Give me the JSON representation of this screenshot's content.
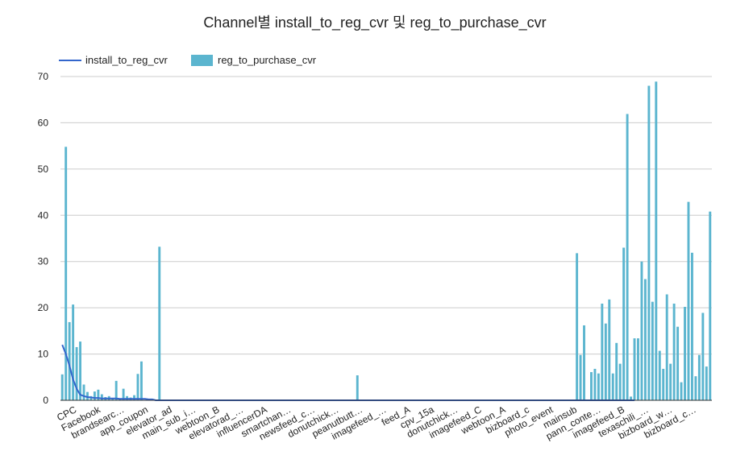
{
  "chart_data": {
    "type": "bar",
    "title": "Channel별 install_to_reg_cvr 및 reg_to_purchase_cvr",
    "xlabel": "",
    "ylabel": "",
    "ylim": [
      0,
      70
    ],
    "yticks": [
      0,
      10,
      20,
      30,
      40,
      50,
      60,
      70
    ],
    "grid": true,
    "legend_position": "top-left",
    "colors": {
      "line": "#3366CC",
      "bar": "#5BB5CF",
      "grid": "#CCCCCC",
      "axis": "#333333"
    },
    "x_tick_labels": [
      "CPC",
      "Facebook",
      "brandsearc…",
      "app_coupon",
      "elevator_ad",
      "main_sub_i…",
      "webtoon_B",
      "elevatorad_…",
      "influencerDA",
      "smartchan…",
      "newsfeed_c…",
      "donutchick…",
      "peanutbutt…",
      "imagefeed_…",
      "feed_A",
      "cpv_15a",
      "donutchick…",
      "imagefeed_C",
      "webtoon_A",
      "bizboard_c",
      "photo_event",
      "mainsub",
      "pann_conte…",
      "imagefeed_B",
      "texaschili_…",
      "bizboard_w…",
      "bizboard_c…"
    ],
    "series": [
      {
        "name": "install_to_reg_cvr",
        "type": "line",
        "values": [
          12,
          10,
          7.5,
          4.5,
          2.5,
          1.2,
          0.9,
          0.7,
          0.6,
          0.5,
          0.5,
          0.4,
          0.4,
          0.4,
          0.4,
          0.4,
          0.3,
          0.3,
          0.3,
          0.3,
          0.3,
          0.3,
          0.3,
          0.3,
          0.2,
          0.2,
          0,
          0,
          0,
          0,
          0,
          0,
          0,
          0,
          0,
          0,
          0,
          0,
          0,
          0,
          0,
          0,
          0,
          0,
          0,
          0,
          0,
          0,
          0,
          0,
          0,
          0,
          0,
          0,
          0,
          0,
          0,
          0,
          0,
          0,
          0,
          0,
          0,
          0,
          0,
          0,
          0,
          0,
          0,
          0,
          0,
          0,
          0,
          0,
          0,
          0,
          0,
          0,
          0,
          0,
          0,
          0,
          0,
          0,
          0,
          0,
          0,
          0,
          0,
          0,
          0,
          0,
          0,
          0,
          0,
          0,
          0,
          0,
          0,
          0,
          0,
          0,
          0,
          0,
          0,
          0,
          0,
          0,
          0,
          0,
          0,
          0,
          0,
          0,
          0,
          0,
          0,
          0,
          0,
          0,
          0,
          0,
          0,
          0,
          0,
          0,
          0,
          0,
          0,
          0,
          0,
          0,
          0,
          0,
          0,
          0,
          0,
          0,
          0,
          0,
          0,
          0,
          0,
          0,
          0,
          0,
          0,
          0,
          0,
          0,
          0,
          0,
          0,
          0,
          0,
          0,
          0,
          0,
          0,
          0
        ]
      },
      {
        "name": "reg_to_purchase_cvr",
        "type": "bar",
        "values": [
          5.6,
          54.8,
          16.9,
          20.7,
          11.5,
          12.7,
          3.4,
          1.8,
          0.9,
          1.9,
          2.3,
          1.3,
          0.7,
          0.9,
          0.5,
          4.2,
          0.4,
          2.5,
          0.9,
          0.6,
          1.1,
          5.7,
          8.4,
          0,
          0,
          0,
          0,
          33.2,
          0,
          0,
          0,
          0,
          0,
          0,
          0,
          0,
          0,
          0,
          0,
          0,
          0,
          0,
          0,
          0,
          0,
          0,
          0,
          0,
          0,
          0,
          0,
          0,
          0,
          0,
          0,
          0,
          0,
          0,
          0,
          0,
          0,
          0,
          0,
          0,
          0,
          0,
          0,
          0,
          0,
          0,
          0,
          0,
          0,
          0,
          0,
          0,
          0,
          0,
          0,
          0,
          0,
          0,
          5.4,
          0,
          0,
          0,
          0,
          0,
          0,
          0,
          0,
          0,
          0,
          0,
          0,
          0,
          0,
          0,
          0,
          0,
          0,
          0,
          0,
          0,
          0,
          0,
          0,
          0,
          0,
          0,
          0,
          0,
          0,
          0,
          0,
          0,
          0,
          0,
          0,
          0,
          0,
          0,
          0,
          0,
          0,
          0,
          0,
          0,
          0,
          0,
          0,
          0,
          0,
          0,
          0,
          0,
          0,
          0,
          0,
          0,
          0,
          0,
          0,
          31.8,
          9.8,
          16.2,
          0,
          6.1,
          6.8,
          5.8,
          20.9,
          16.6,
          21.8,
          5.8,
          12.4,
          7.9,
          33,
          61.9,
          0.8,
          13.4,
          13.4,
          30,
          26.2,
          68,
          21.3,
          68.9,
          10.7,
          6.8,
          22.9,
          7.9,
          20.9,
          15.9,
          3.9,
          20.2,
          42.9,
          31.9,
          5.2,
          9.8,
          18.9,
          7.3,
          40.8
        ]
      }
    ]
  }
}
